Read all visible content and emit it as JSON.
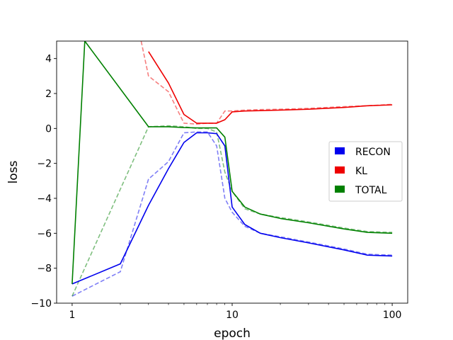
{
  "chart_data": {
    "type": "line",
    "xlabel": "epoch",
    "ylabel": "loss",
    "xscale": "log",
    "xlim": [
      0.8,
      125
    ],
    "ylim": [
      -10,
      5
    ],
    "xticks": [
      1,
      10,
      100
    ],
    "xtick_labels": [
      "1",
      "10",
      "100"
    ],
    "yticks": [
      -10,
      -8,
      -6,
      -4,
      -2,
      0,
      2,
      4
    ],
    "ytick_labels": [
      "−10",
      "−8",
      "−6",
      "−4",
      "−2",
      "0",
      "2",
      "4"
    ],
    "grid": false,
    "legend_position": "center-right",
    "colors": {
      "RECON": "#0000ee",
      "KL": "#ee0000",
      "TOTAL": "#008000"
    },
    "series": [
      {
        "name": "RECON",
        "style": "solid",
        "x": [
          1,
          2,
          3,
          4,
          5,
          6,
          7,
          8,
          9,
          10,
          12,
          15,
          20,
          30,
          50,
          70,
          100
        ],
        "y": [
          -8.9,
          -7.75,
          -4.4,
          -2.3,
          -0.8,
          -0.25,
          -0.25,
          -0.3,
          -1.0,
          -4.5,
          -5.5,
          -6.0,
          -6.25,
          -6.55,
          -6.95,
          -7.25,
          -7.3
        ]
      },
      {
        "name": "KL",
        "style": "solid",
        "x": [
          3,
          4,
          5,
          6,
          7,
          8,
          9,
          10,
          12,
          15,
          20,
          30,
          50,
          70,
          100
        ],
        "y": [
          4.4,
          2.6,
          0.8,
          0.3,
          0.3,
          0.3,
          0.5,
          0.95,
          1.0,
          1.02,
          1.05,
          1.1,
          1.2,
          1.3,
          1.35
        ]
      },
      {
        "name": "TOTAL",
        "style": "solid",
        "x": [
          1,
          1.2,
          3,
          4,
          5,
          6,
          7,
          8,
          9,
          10,
          12,
          15,
          20,
          30,
          50,
          70,
          100
        ],
        "y": [
          -8.9,
          5.0,
          0.1,
          0.1,
          0.05,
          0.03,
          0.03,
          0.03,
          -0.5,
          -3.6,
          -4.5,
          -4.9,
          -5.15,
          -5.4,
          -5.75,
          -5.95,
          -6.0
        ]
      },
      {
        "name": "RECON",
        "style": "dashed",
        "x": [
          1,
          2,
          3,
          4,
          5,
          6,
          7,
          8,
          9,
          10,
          12,
          15,
          20,
          30,
          50,
          70,
          100
        ],
        "y": [
          -9.6,
          -8.2,
          -2.9,
          -1.9,
          -0.25,
          -0.2,
          -0.2,
          -1.0,
          -4.0,
          -4.8,
          -5.6,
          -6.0,
          -6.2,
          -6.5,
          -6.9,
          -7.2,
          -7.25
        ]
      },
      {
        "name": "KL",
        "style": "dashed",
        "x": [
          2.7,
          3,
          4,
          5,
          6,
          7,
          8,
          9,
          10,
          12,
          15,
          20,
          30,
          50,
          70,
          100
        ],
        "y": [
          5.0,
          3.0,
          2.1,
          0.3,
          0.25,
          0.3,
          0.3,
          1.0,
          1.0,
          1.05,
          1.08,
          1.1,
          1.15,
          1.25,
          1.3,
          1.38
        ]
      },
      {
        "name": "TOTAL",
        "style": "dashed",
        "x": [
          1,
          3,
          4,
          5,
          6,
          7,
          8,
          9,
          10,
          12,
          15,
          20,
          30,
          50,
          70,
          100
        ],
        "y": [
          -9.6,
          0.1,
          0.15,
          0.1,
          0.0,
          0.0,
          -0.2,
          -2.5,
          -3.6,
          -4.6,
          -4.9,
          -5.1,
          -5.35,
          -5.7,
          -5.9,
          -5.95
        ]
      }
    ],
    "legend": [
      "RECON",
      "KL",
      "TOTAL"
    ]
  }
}
